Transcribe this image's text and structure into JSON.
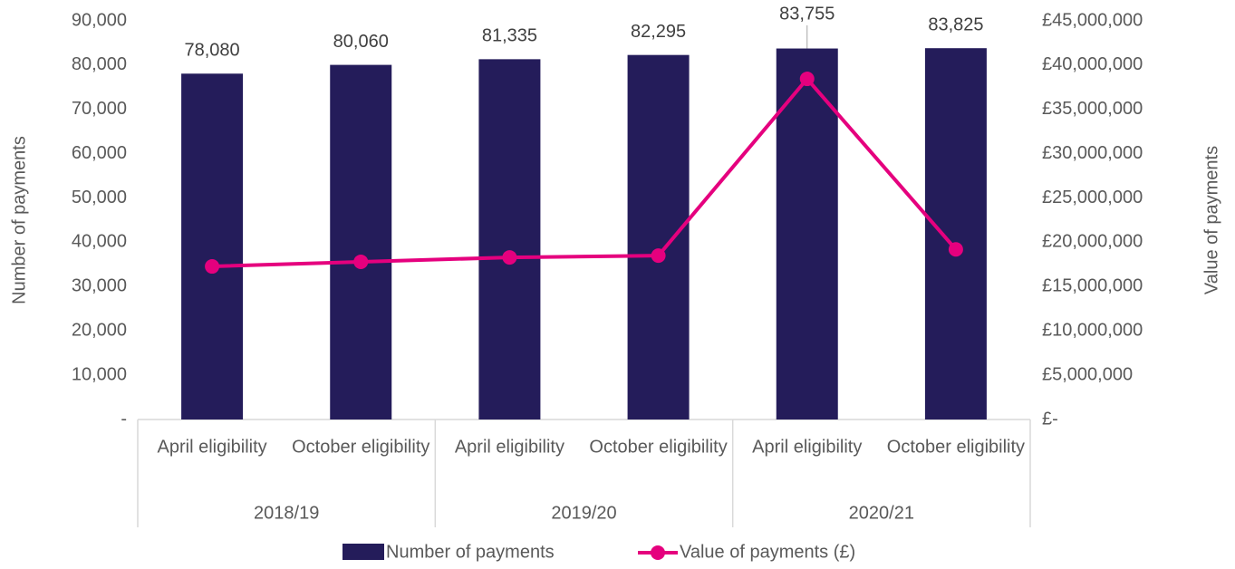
{
  "chart_data": {
    "type": "bar",
    "categories": [
      "April eligibility",
      "October eligibility",
      "April eligibility",
      "October eligibility",
      "April eligibility",
      "October eligibility"
    ],
    "groups": [
      "2018/19",
      "2019/20",
      "2020/21"
    ],
    "series": [
      {
        "name": "Number of payments",
        "color": "#241c5a",
        "type": "bar",
        "values": [
          78080,
          80060,
          81335,
          82295,
          83755,
          83825
        ],
        "value_labels": [
          "78,080",
          "80,060",
          "81,335",
          "82,295",
          "83,755",
          "83,825"
        ]
      },
      {
        "name": "Value of payments (£)",
        "color": "#e5007e",
        "type": "line",
        "axis": "y2",
        "values": [
          17280000,
          17800000,
          18300000,
          18500000,
          38450000,
          19200000
        ]
      }
    ],
    "ylabel": "Number of payments",
    "y2label": "Value of payments",
    "ylim": [
      0,
      90000
    ],
    "yticks": [
      {
        "value": 0,
        "label": "-"
      },
      {
        "value": 10000,
        "label": "10,000"
      },
      {
        "value": 20000,
        "label": "20,000"
      },
      {
        "value": 30000,
        "label": "30,000"
      },
      {
        "value": 40000,
        "label": "40,000"
      },
      {
        "value": 50000,
        "label": "50,000"
      },
      {
        "value": 60000,
        "label": "60,000"
      },
      {
        "value": 70000,
        "label": "70,000"
      },
      {
        "value": 80000,
        "label": "80,000"
      },
      {
        "value": 90000,
        "label": "90,000"
      }
    ],
    "y2lim": [
      0,
      45000000
    ],
    "y2ticks": [
      {
        "value": 0,
        "label": "£-"
      },
      {
        "value": 5000000,
        "label": "£5,000,000"
      },
      {
        "value": 10000000,
        "label": "£10,000,000"
      },
      {
        "value": 15000000,
        "label": "£15,000,000"
      },
      {
        "value": 20000000,
        "label": "£20,000,000"
      },
      {
        "value": 25000000,
        "label": "£25,000,000"
      },
      {
        "value": 30000000,
        "label": "£30,000,000"
      },
      {
        "value": 35000000,
        "label": "£35,000,000"
      },
      {
        "value": 40000000,
        "label": "£40,000,000"
      },
      {
        "value": 45000000,
        "label": "£45,000,000"
      }
    ],
    "legend": "bottom"
  }
}
